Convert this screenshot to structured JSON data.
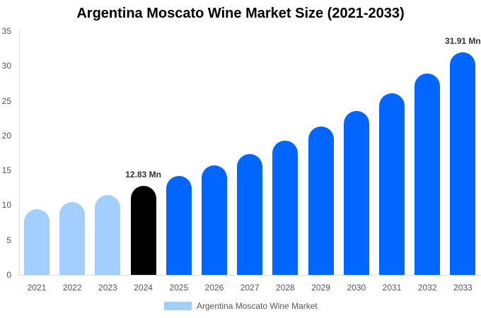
{
  "chart_data": {
    "type": "bar",
    "title": "Argentina Moscato Wine Market Size (2021-2033)",
    "xlabel": "",
    "ylabel": "",
    "ylim": [
      0,
      35
    ],
    "yticks": [
      0,
      5,
      10,
      15,
      20,
      25,
      30,
      35
    ],
    "grid": false,
    "legend_position": "bottom",
    "categories": [
      "2021",
      "2022",
      "2023",
      "2024",
      "2025",
      "2026",
      "2027",
      "2028",
      "2029",
      "2030",
      "2031",
      "2032",
      "2033"
    ],
    "series": [
      {
        "name": "Argentina Moscato Wine Market",
        "values": [
          9.4,
          10.4,
          11.5,
          12.83,
          14.2,
          15.7,
          17.3,
          19.3,
          21.3,
          23.5,
          26.1,
          28.9,
          31.91
        ]
      }
    ],
    "bar_colors": [
      "#A3CFFF",
      "#A3CFFF",
      "#A3CFFF",
      "#000000",
      "#0066FF",
      "#0066FF",
      "#0066FF",
      "#0066FF",
      "#0066FF",
      "#0066FF",
      "#0066FF",
      "#0066FF",
      "#0066FF"
    ],
    "annotations": [
      {
        "category": "2024",
        "text": "12.83 Mn"
      },
      {
        "category": "2033",
        "text": "31.91 Mn"
      }
    ]
  },
  "legend": {
    "label": "Argentina Moscato Wine Market",
    "color": "#A3CFFF"
  }
}
